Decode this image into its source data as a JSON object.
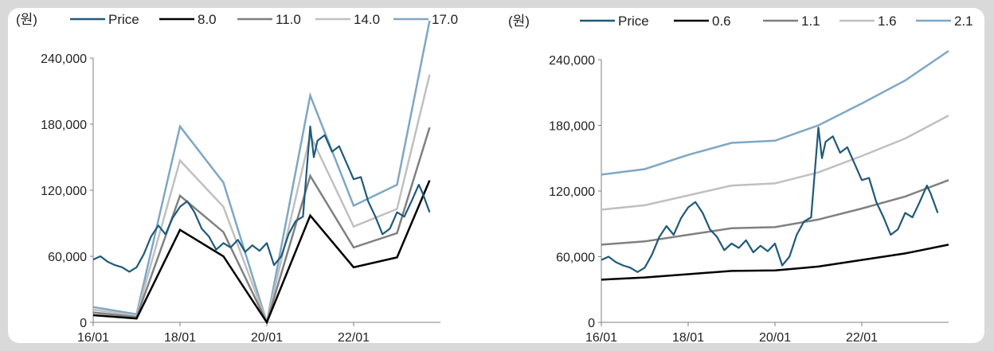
{
  "charts": [
    {
      "unit_label": "(원)",
      "chart_data": {
        "type": "line",
        "title": "",
        "xlabel": "",
        "ylabel": "(원)",
        "ylim": [
          0,
          240000
        ],
        "yticks": [
          "0",
          "60,000",
          "120,000",
          "180,000",
          "240,000"
        ],
        "ytick_values": [
          0,
          60000,
          120000,
          180000,
          240000
        ],
        "xticks": [
          "16/01",
          "18/01",
          "20/01",
          "22/01"
        ],
        "xtick_values": [
          "2016-01",
          "2018-01",
          "2020-01",
          "2022-01"
        ],
        "xlim": [
          "2016-01",
          "2024-01"
        ],
        "band_dates": [
          "2016-01",
          "2017-01",
          "2018-01",
          "2019-01",
          "2020-01",
          "2021-01",
          "2022-01",
          "2023-01",
          "2023-10"
        ],
        "series": [
          {
            "name": "Price",
            "color": "#1f5a7a",
            "kind": "price"
          },
          {
            "name": "8.0",
            "color": "#000000",
            "values": [
              6500,
              3500,
              84000,
              60000,
              0,
              97000,
              50000,
              59000,
              129000
            ]
          },
          {
            "name": "11.0",
            "color": "#808080",
            "values": [
              9000,
              4800,
              115000,
              82000,
              0,
              133000,
              68000,
              81000,
              177000
            ]
          },
          {
            "name": "14.0",
            "color": "#c0c0c0",
            "values": [
              11500,
              6100,
              147000,
              105000,
              0,
              170000,
              87000,
              103000,
              225000
            ]
          },
          {
            "name": "17.0",
            "color": "#7fa7c4",
            "values": [
              13900,
              7400,
              178000,
              127000,
              0,
              206000,
              106000,
              125000,
              274000
            ]
          }
        ]
      }
    },
    {
      "unit_label": "(원)",
      "chart_data": {
        "type": "line",
        "title": "",
        "xlabel": "",
        "ylabel": "(원)",
        "ylim": [
          0,
          240000
        ],
        "yticks": [
          "0",
          "60,000",
          "120,000",
          "180,000",
          "240,000"
        ],
        "ytick_values": [
          0,
          60000,
          120000,
          180000,
          240000
        ],
        "xticks": [
          "16/01",
          "18/01",
          "20/01",
          "22/01"
        ],
        "xtick_values": [
          "2016-01",
          "2018-01",
          "2020-01",
          "2022-01"
        ],
        "xlim": [
          "2016-01",
          "2024-01"
        ],
        "band_dates": [
          "2016-01",
          "2017-01",
          "2018-01",
          "2019-01",
          "2020-01",
          "2021-01",
          "2022-01",
          "2023-01",
          "2024-01"
        ],
        "series": [
          {
            "name": "Price",
            "color": "#1f5a7a",
            "kind": "price"
          },
          {
            "name": "0.6",
            "color": "#000000",
            "values": [
              39000,
              41000,
              44000,
              47000,
              47500,
              51000,
              57000,
              63000,
              71000
            ]
          },
          {
            "name": "1.1",
            "color": "#808080",
            "values": [
              71000,
              74000,
              80000,
              86000,
              87000,
              94000,
              104000,
              115000,
              130000
            ]
          },
          {
            "name": "1.6",
            "color": "#c0c0c0",
            "values": [
              103000,
              107000,
              116000,
              125000,
              127000,
              137000,
              152000,
              168000,
              189000
            ]
          },
          {
            "name": "2.1",
            "color": "#7fa7c4",
            "values": [
              135000,
              140000,
              153000,
              164000,
              166000,
              180000,
              200000,
              221000,
              248000
            ]
          }
        ]
      }
    }
  ],
  "price_series": {
    "name": "Price",
    "dates": [
      "2016-01",
      "2016-03",
      "2016-05",
      "2016-07",
      "2016-09",
      "2016-11",
      "2017-01",
      "2017-03",
      "2017-05",
      "2017-07",
      "2017-09",
      "2017-11",
      "2018-01",
      "2018-03",
      "2018-05",
      "2018-07",
      "2018-09",
      "2018-11",
      "2019-01",
      "2019-03",
      "2019-05",
      "2019-07",
      "2019-09",
      "2019-11",
      "2020-01",
      "2020-03",
      "2020-05",
      "2020-07",
      "2020-09",
      "2020-11",
      "2021-01",
      "2021-02",
      "2021-03",
      "2021-05",
      "2021-07",
      "2021-09",
      "2021-11",
      "2022-01",
      "2022-03",
      "2022-05",
      "2022-07",
      "2022-09",
      "2022-11",
      "2023-01",
      "2023-03",
      "2023-05",
      "2023-07",
      "2023-08",
      "2023-10"
    ],
    "values": [
      57000,
      60000,
      55000,
      52000,
      50000,
      46000,
      50000,
      62000,
      78000,
      88000,
      80000,
      95000,
      105000,
      110000,
      100000,
      85000,
      78000,
      66000,
      72000,
      68000,
      75000,
      64000,
      70000,
      65000,
      72000,
      52000,
      60000,
      80000,
      92000,
      96000,
      178000,
      150000,
      165000,
      170000,
      155000,
      160000,
      145000,
      130000,
      132000,
      110000,
      96000,
      80000,
      85000,
      100000,
      96000,
      110000,
      125000,
      118000,
      100000
    ]
  }
}
